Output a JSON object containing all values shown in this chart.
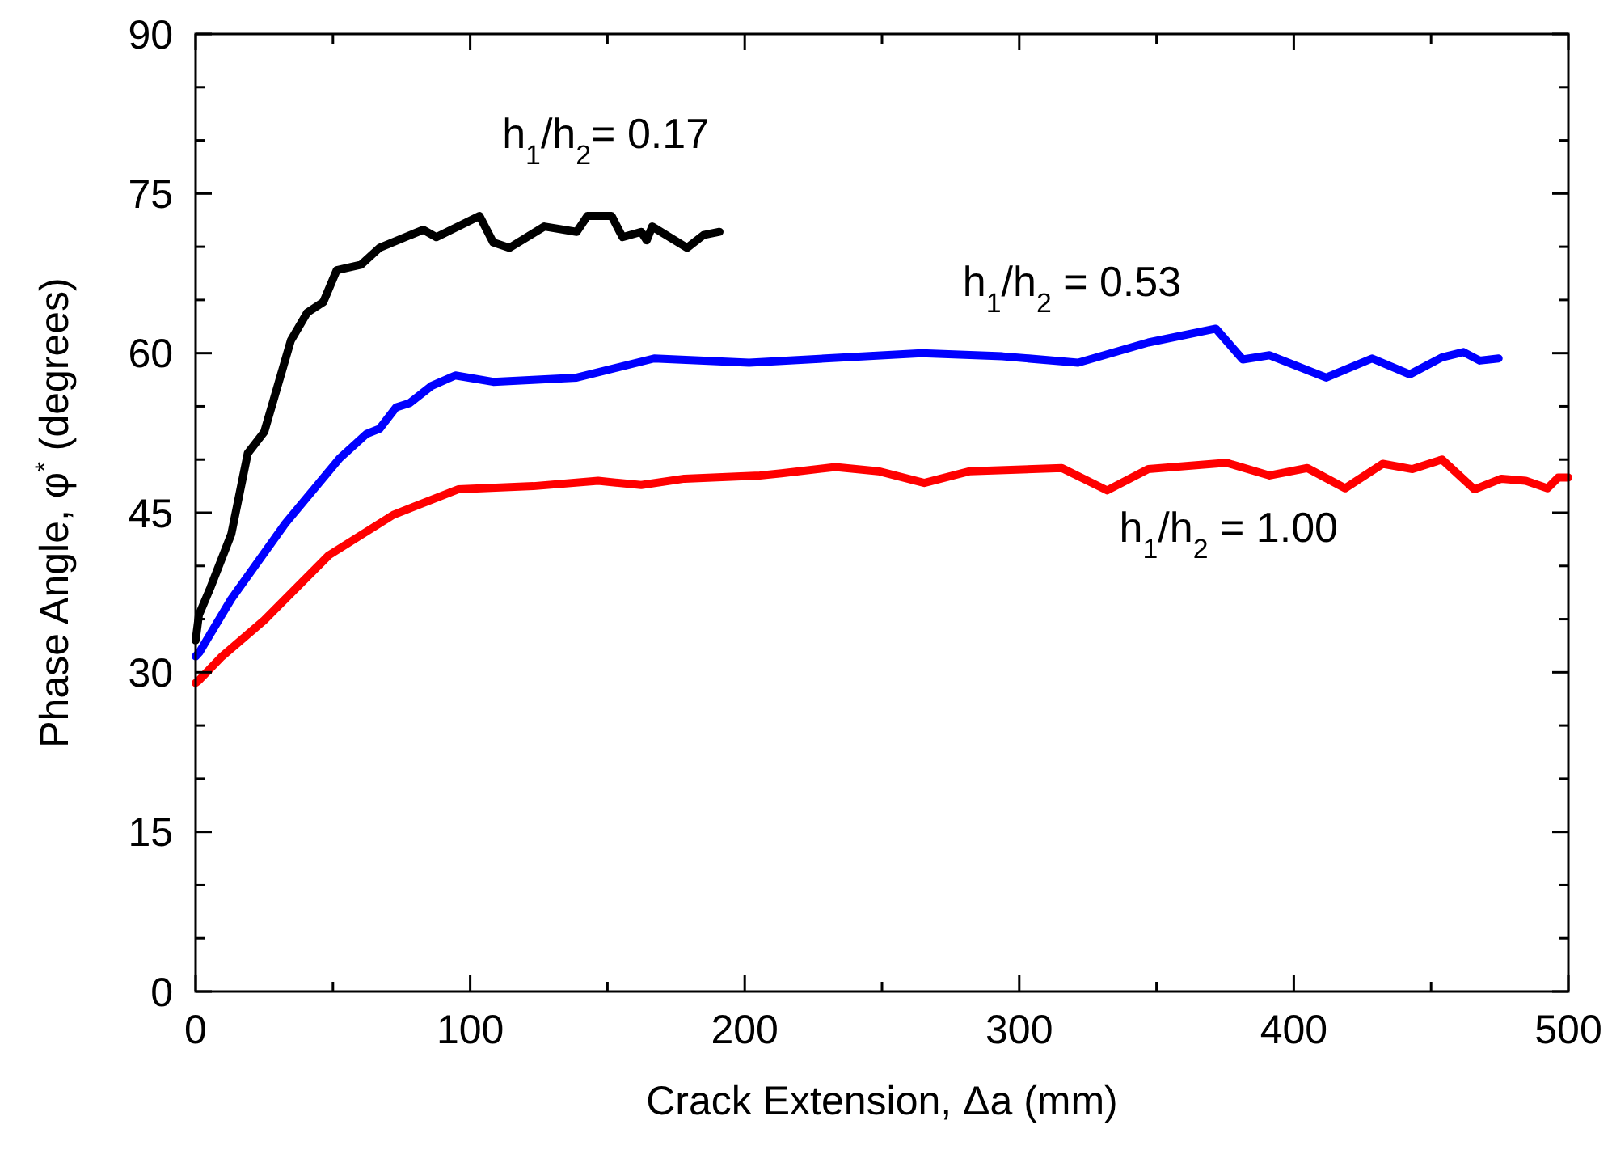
{
  "chart_data": {
    "type": "line",
    "xlabel": "Crack Extension, Δa (mm)",
    "ylabel": "Phase Angle, φ$^{*}$ (degrees)",
    "xlim": [
      0,
      500
    ],
    "xticks": [
      0,
      100,
      200,
      300,
      400,
      500
    ],
    "ylim": [
      0,
      90
    ],
    "yticks": [
      0,
      15,
      30,
      45,
      60,
      75,
      90
    ],
    "grid": false,
    "legend": false,
    "marker": "none",
    "line_style": "solid",
    "series": [
      {
        "name": "h$_{1}$/h$_{2}$= 0.17",
        "color": "#000000",
        "x": [
          0,
          1.2,
          5.3,
          13,
          19,
          25,
          34.7,
          40.6,
          46.5,
          51.4,
          60.2,
          67,
          82.9,
          87.7,
          103.4,
          108.4,
          114.3,
          127,
          138.8,
          142.7,
          151.5,
          155.5,
          162.3,
          164.3,
          166.3,
          179,
          185,
          190.8
        ],
        "values": [
          33,
          35.4,
          37.9,
          43,
          50.6,
          52.6,
          61.2,
          63.8,
          64.8,
          67.8,
          68.3,
          69.9,
          71.6,
          70.9,
          72.9,
          70.4,
          69.9,
          71.9,
          71.4,
          72.9,
          72.9,
          70.9,
          71.4,
          70.6,
          71.9,
          69.9,
          71.1,
          71.4
        ]
      },
      {
        "name": "h$_{1}$/h$_{2}$ = 0.53",
        "color": "#0000ff",
        "x": [
          0,
          1.4,
          13,
          32.7,
          52.4,
          62.2,
          67,
          73,
          77.9,
          85.8,
          94.6,
          108.4,
          138.8,
          167,
          201.6,
          264.4,
          293.9,
          321.4,
          347,
          371.6,
          381.4,
          391.2,
          411.8,
          428.5,
          442.2,
          454,
          461.8,
          467.7,
          474.6
        ],
        "values": [
          31.5,
          31.9,
          36.9,
          44,
          50.1,
          52.4,
          52.9,
          54.9,
          55.3,
          56.9,
          57.9,
          57.3,
          57.7,
          59.5,
          59.1,
          60,
          59.7,
          59.1,
          61,
          62.3,
          59.4,
          59.8,
          57.7,
          59.5,
          58,
          59.6,
          60.1,
          59.3,
          59.5
        ]
      },
      {
        "name": "h$_{1}$/h$_{2}$ = 1.00",
        "color": "#ff0000",
        "x": [
          0,
          1.4,
          9.2,
          25,
          48.5,
          72,
          95.6,
          123,
          146.6,
          162.3,
          178,
          205.5,
          213.4,
          233,
          248.7,
          265.4,
          282,
          315.5,
          332,
          347,
          375.4,
          391.2,
          404.9,
          418.7,
          432.4,
          443.2,
          454,
          465.8,
          475.6,
          484.5,
          492.4,
          496.3,
          500
        ],
        "values": [
          29,
          29.3,
          31.4,
          34.9,
          41,
          44.8,
          47.2,
          47.5,
          48,
          47.6,
          48.2,
          48.5,
          48.7,
          49.3,
          48.9,
          47.8,
          48.9,
          49.2,
          47.1,
          49.1,
          49.7,
          48.5,
          49.2,
          47.3,
          49.6,
          49.1,
          50,
          47.2,
          48.2,
          48,
          47.3,
          48.3,
          48.3
        ]
      }
    ]
  }
}
